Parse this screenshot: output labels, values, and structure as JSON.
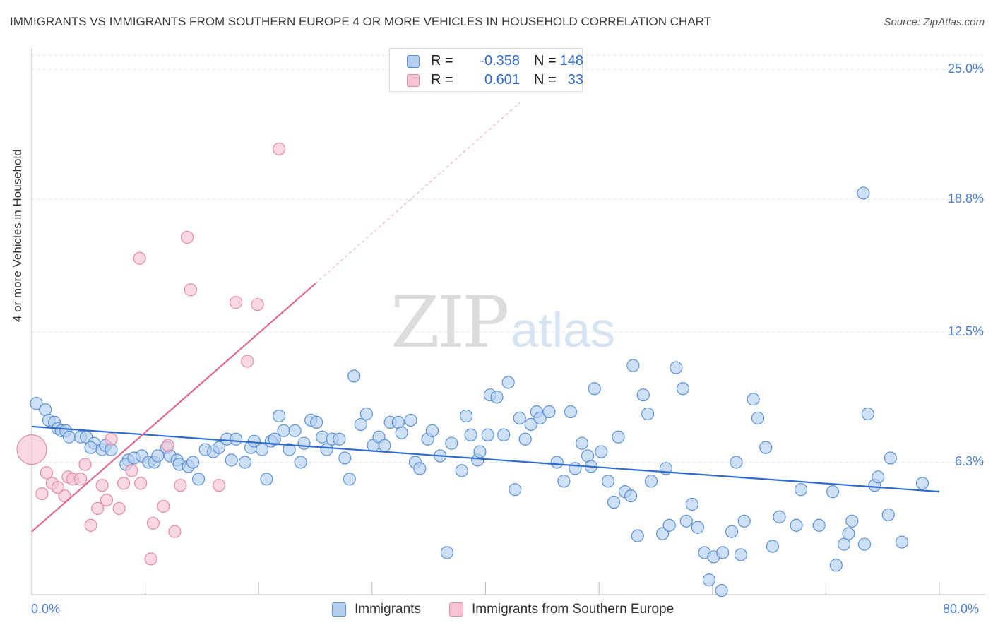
{
  "title": "IMMIGRANTS VS IMMIGRANTS FROM SOUTHERN EUROPE 4 OR MORE VEHICLES IN HOUSEHOLD CORRELATION CHART",
  "source": "Source: ZipAtlas.com",
  "watermark": {
    "zip": "ZIP",
    "atlas": "atlas"
  },
  "colors": {
    "blue_fill": "#b4cff0",
    "blue_stroke": "#5b8fd6",
    "blue_line": "#2f6ad0",
    "pink_fill": "#f6c3d2",
    "pink_stroke": "#e58aa6",
    "pink_line": "#e0688f",
    "tick_text": "#4a7fcf",
    "grid": "#e3e3e3"
  },
  "legend_top": {
    "rows": [
      {
        "r_label": "R =",
        "r_value": "-0.358",
        "n_label": "N =",
        "n_value": "148"
      },
      {
        "r_label": "R =",
        "r_value": "0.601",
        "n_label": "N =",
        "n_value": "33"
      }
    ]
  },
  "legend_bottom": {
    "items": [
      {
        "label": "Immigrants"
      },
      {
        "label": "Immigrants from Southern Europe"
      }
    ]
  },
  "chart_data": {
    "type": "scatter",
    "title": "IMMIGRANTS VS IMMIGRANTS FROM SOUTHERN EUROPE 4 OR MORE VEHICLES IN HOUSEHOLD CORRELATION CHART",
    "xlabel": "",
    "ylabel": "4 or more Vehicles in Household",
    "xlim": [
      0,
      80
    ],
    "ylim": [
      0,
      25.8
    ],
    "x_tick_labels": [
      "0.0%",
      "80.0%"
    ],
    "y_ticks": [
      6.3,
      12.5,
      18.8,
      25.0
    ],
    "y_tick_labels": [
      "6.3%",
      "12.5%",
      "18.8%",
      "25.0%"
    ],
    "grid": true,
    "legend_position": "top-center",
    "series": [
      {
        "name": "Immigrants",
        "r": -0.358,
        "n": 148,
        "trend": {
          "x0": 0,
          "y0": 8.0,
          "x1": 80,
          "y1": 4.9
        },
        "points": [
          [
            0.4,
            9.1
          ],
          [
            1.2,
            8.8
          ],
          [
            1.5,
            8.3
          ],
          [
            2.0,
            8.2
          ],
          [
            2.3,
            7.9
          ],
          [
            2.6,
            7.8
          ],
          [
            3.0,
            7.8
          ],
          [
            3.3,
            7.5
          ],
          [
            4.3,
            7.5
          ],
          [
            4.8,
            7.5
          ],
          [
            5.5,
            7.2
          ],
          [
            5.2,
            7.0
          ],
          [
            6.2,
            6.9
          ],
          [
            6.5,
            7.1
          ],
          [
            7.0,
            6.9
          ],
          [
            8.5,
            6.4
          ],
          [
            8.3,
            6.2
          ],
          [
            9.0,
            6.5
          ],
          [
            9.7,
            6.6
          ],
          [
            10.3,
            6.3
          ],
          [
            10.8,
            6.3
          ],
          [
            11.1,
            6.6
          ],
          [
            11.9,
            7.0
          ],
          [
            12.2,
            6.6
          ],
          [
            12.8,
            6.4
          ],
          [
            13.0,
            6.2
          ],
          [
            13.8,
            6.1
          ],
          [
            14.2,
            6.3
          ],
          [
            14.7,
            5.5
          ],
          [
            15.3,
            6.9
          ],
          [
            16.0,
            6.8
          ],
          [
            16.5,
            7.0
          ],
          [
            17.2,
            7.4
          ],
          [
            17.6,
            6.4
          ],
          [
            18.0,
            7.4
          ],
          [
            18.8,
            6.3
          ],
          [
            19.3,
            7.0
          ],
          [
            19.6,
            7.3
          ],
          [
            20.3,
            6.9
          ],
          [
            20.7,
            5.5
          ],
          [
            21.1,
            7.3
          ],
          [
            21.4,
            7.4
          ],
          [
            21.8,
            8.5
          ],
          [
            22.2,
            7.8
          ],
          [
            22.7,
            6.9
          ],
          [
            23.2,
            7.8
          ],
          [
            23.7,
            6.3
          ],
          [
            24.0,
            7.2
          ],
          [
            24.6,
            8.3
          ],
          [
            25.1,
            8.2
          ],
          [
            25.6,
            7.5
          ],
          [
            26.0,
            6.9
          ],
          [
            26.5,
            7.4
          ],
          [
            27.1,
            7.4
          ],
          [
            27.6,
            6.5
          ],
          [
            28.0,
            5.5
          ],
          [
            28.4,
            10.4
          ],
          [
            29.0,
            8.1
          ],
          [
            29.5,
            8.6
          ],
          [
            30.1,
            7.1
          ],
          [
            30.6,
            7.5
          ],
          [
            31.1,
            7.1
          ],
          [
            31.6,
            8.2
          ],
          [
            32.3,
            8.2
          ],
          [
            32.6,
            7.7
          ],
          [
            33.4,
            8.3
          ],
          [
            33.8,
            6.3
          ],
          [
            34.2,
            6.0
          ],
          [
            34.9,
            7.4
          ],
          [
            35.3,
            7.8
          ],
          [
            36.0,
            6.6
          ],
          [
            36.6,
            2.0
          ],
          [
            37.0,
            7.2
          ],
          [
            37.9,
            5.9
          ],
          [
            38.3,
            8.5
          ],
          [
            38.7,
            7.6
          ],
          [
            39.3,
            6.4
          ],
          [
            39.5,
            6.8
          ],
          [
            40.2,
            7.6
          ],
          [
            40.4,
            9.5
          ],
          [
            41.0,
            9.4
          ],
          [
            41.6,
            7.6
          ],
          [
            42.0,
            10.1
          ],
          [
            42.6,
            5.0
          ],
          [
            43.0,
            8.4
          ],
          [
            43.5,
            7.4
          ],
          [
            44.0,
            8.1
          ],
          [
            44.5,
            8.7
          ],
          [
            44.8,
            8.4
          ],
          [
            45.6,
            8.7
          ],
          [
            46.3,
            6.3
          ],
          [
            46.9,
            5.4
          ],
          [
            47.5,
            8.7
          ],
          [
            47.9,
            6.0
          ],
          [
            48.5,
            7.2
          ],
          [
            49.0,
            6.6
          ],
          [
            49.3,
            6.1
          ],
          [
            49.6,
            9.8
          ],
          [
            50.2,
            6.8
          ],
          [
            50.8,
            5.4
          ],
          [
            51.3,
            4.4
          ],
          [
            51.7,
            7.5
          ],
          [
            52.3,
            4.9
          ],
          [
            52.8,
            4.7
          ],
          [
            53.0,
            10.9
          ],
          [
            53.4,
            2.8
          ],
          [
            53.9,
            9.5
          ],
          [
            54.3,
            8.6
          ],
          [
            54.6,
            5.4
          ],
          [
            55.6,
            2.9
          ],
          [
            55.9,
            6.0
          ],
          [
            56.2,
            3.3
          ],
          [
            56.8,
            10.8
          ],
          [
            57.4,
            9.8
          ],
          [
            57.7,
            3.5
          ],
          [
            58.2,
            4.3
          ],
          [
            58.7,
            3.2
          ],
          [
            59.3,
            2.0
          ],
          [
            59.7,
            0.7
          ],
          [
            60.1,
            1.8
          ],
          [
            60.8,
            0.2
          ],
          [
            60.9,
            2.0
          ],
          [
            61.7,
            3.0
          ],
          [
            62.1,
            6.3
          ],
          [
            62.5,
            1.9
          ],
          [
            62.8,
            3.5
          ],
          [
            63.6,
            9.3
          ],
          [
            64.0,
            8.4
          ],
          [
            64.7,
            7.0
          ],
          [
            65.3,
            2.3
          ],
          [
            65.9,
            3.7
          ],
          [
            67.4,
            3.3
          ],
          [
            67.8,
            5.0
          ],
          [
            69.4,
            3.3
          ],
          [
            70.6,
            4.9
          ],
          [
            70.9,
            1.4
          ],
          [
            71.6,
            2.4
          ],
          [
            72.0,
            2.9
          ],
          [
            72.3,
            3.5
          ],
          [
            73.3,
            19.1
          ],
          [
            73.4,
            2.4
          ],
          [
            73.7,
            8.6
          ],
          [
            74.3,
            5.2
          ],
          [
            74.6,
            5.6
          ],
          [
            75.5,
            3.8
          ],
          [
            75.7,
            6.5
          ],
          [
            76.7,
            2.5
          ],
          [
            78.5,
            5.3
          ]
        ]
      },
      {
        "name": "Immigrants from Southern Europe",
        "r": 0.601,
        "n": 33,
        "trend": {
          "x0": 0,
          "y0": 3.0,
          "x1": 25.0,
          "y1": 14.8
        },
        "trend_extension": {
          "x0": 25.0,
          "y0": 14.8,
          "x1": 43.0,
          "y1": 23.4
        },
        "points": [
          [
            0.0,
            6.9
          ],
          [
            0.9,
            4.8
          ],
          [
            1.3,
            5.8
          ],
          [
            1.8,
            5.3
          ],
          [
            2.3,
            5.1
          ],
          [
            2.9,
            4.7
          ],
          [
            3.2,
            5.6
          ],
          [
            3.6,
            5.5
          ],
          [
            4.3,
            5.5
          ],
          [
            4.7,
            6.2
          ],
          [
            5.2,
            3.3
          ],
          [
            5.8,
            4.1
          ],
          [
            6.2,
            5.2
          ],
          [
            6.6,
            4.5
          ],
          [
            7.0,
            7.4
          ],
          [
            7.7,
            4.1
          ],
          [
            8.1,
            5.3
          ],
          [
            8.8,
            5.9
          ],
          [
            9.5,
            16.0
          ],
          [
            9.6,
            5.3
          ],
          [
            10.5,
            1.7
          ],
          [
            10.7,
            3.4
          ],
          [
            11.6,
            4.2
          ],
          [
            12.0,
            7.1
          ],
          [
            12.6,
            3.0
          ],
          [
            13.1,
            5.2
          ],
          [
            13.7,
            17.0
          ],
          [
            14.0,
            14.5
          ],
          [
            16.5,
            5.2
          ],
          [
            18.0,
            13.9
          ],
          [
            19.0,
            11.1
          ],
          [
            19.9,
            13.8
          ],
          [
            21.8,
            21.2
          ]
        ]
      }
    ]
  }
}
